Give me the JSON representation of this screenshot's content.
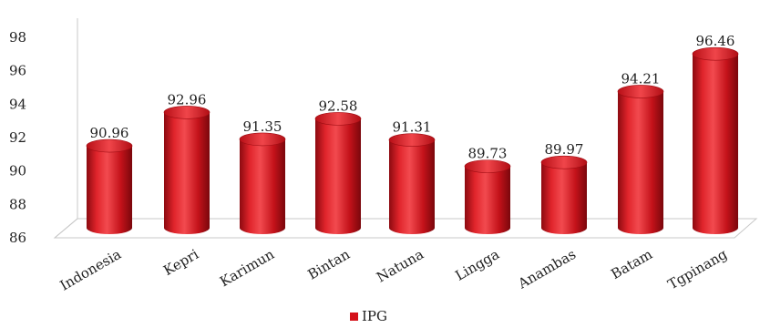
{
  "chart_data": {
    "type": "bar",
    "style": "3d-cylinder",
    "categories": [
      "Indonesia",
      "Kepri",
      "Karimun",
      "Bintan",
      "Natuna",
      "Lingga",
      "Anambas",
      "Batam",
      "Tgpinang"
    ],
    "series": [
      {
        "name": "IPG",
        "color": "#d4111a",
        "values": [
          90.96,
          92.96,
          91.35,
          92.58,
          91.31,
          89.73,
          89.97,
          94.21,
          96.46
        ],
        "value_labels": [
          "90.96",
          "92.96",
          "91.35",
          "92.58",
          "91.31",
          "89.73",
          "89.97",
          "94.21",
          "96.46"
        ]
      }
    ],
    "ylim": [
      86,
      98
    ],
    "yticks": [
      86,
      88,
      90,
      92,
      94,
      96,
      98
    ],
    "legend": {
      "position": "bottom",
      "entries": [
        "IPG"
      ]
    },
    "grid": false
  }
}
